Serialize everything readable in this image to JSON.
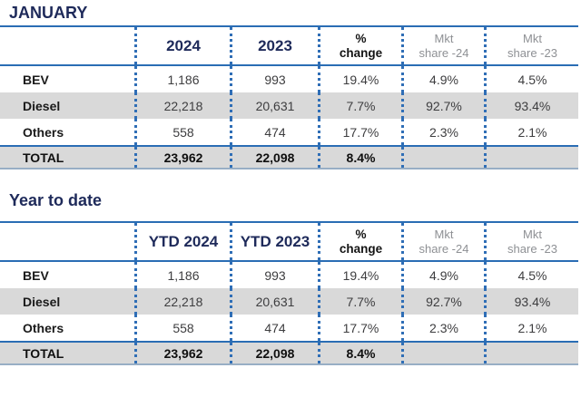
{
  "t1": {
    "title": "JANUARY",
    "header": {
      "year_a": "2024",
      "year_b": "2023",
      "pct_l1": "%",
      "pct_l2": "change",
      "mkt_a_l1": "Mkt",
      "mkt_a_l2": "share -24",
      "mkt_b_l1": "Mkt",
      "mkt_b_l2": "share -23"
    },
    "rows": [
      {
        "label": "BEV",
        "a": "1,186",
        "b": "993",
        "change": "19.4%",
        "mkt24": "4.9%",
        "mkt23": "4.5%"
      },
      {
        "label": "Diesel",
        "a": "22,218",
        "b": "20,631",
        "change": "7.7%",
        "mkt24": "92.7%",
        "mkt23": "93.4%"
      },
      {
        "label": "Others",
        "a": "558",
        "b": "474",
        "change": "17.7%",
        "mkt24": "2.3%",
        "mkt23": "2.1%"
      }
    ],
    "total": {
      "label": "TOTAL",
      "a": "23,962",
      "b": "22,098",
      "change": "8.4%",
      "mkt24": "",
      "mkt23": ""
    }
  },
  "t2": {
    "title": "Year to date",
    "header": {
      "year_a": "YTD 2024",
      "year_b": "YTD 2023",
      "pct_l1": "%",
      "pct_l2": "change",
      "mkt_a_l1": "Mkt",
      "mkt_a_l2": "share -24",
      "mkt_b_l1": "Mkt",
      "mkt_b_l2": "share -23"
    },
    "rows": [
      {
        "label": "BEV",
        "a": "1,186",
        "b": "993",
        "change": "19.4%",
        "mkt24": "4.9%",
        "mkt23": "4.5%"
      },
      {
        "label": "Diesel",
        "a": "22,218",
        "b": "20,631",
        "change": "7.7%",
        "mkt24": "92.7%",
        "mkt23": "93.4%"
      },
      {
        "label": "Others",
        "a": "558",
        "b": "474",
        "change": "17.7%",
        "mkt24": "2.3%",
        "mkt23": "2.1%"
      }
    ],
    "total": {
      "label": "TOTAL",
      "a": "23,962",
      "b": "22,098",
      "change": "8.4%",
      "mkt24": "",
      "mkt23": ""
    }
  },
  "colors": {
    "navy_text": "#1e2a5a",
    "blue_line": "#2a6db4",
    "dotted_separator": "#2f6eb6",
    "alt_row_background": "#d9d9d9",
    "muted_header_text": "#8e9094",
    "bottom_border": "#98aec5"
  }
}
